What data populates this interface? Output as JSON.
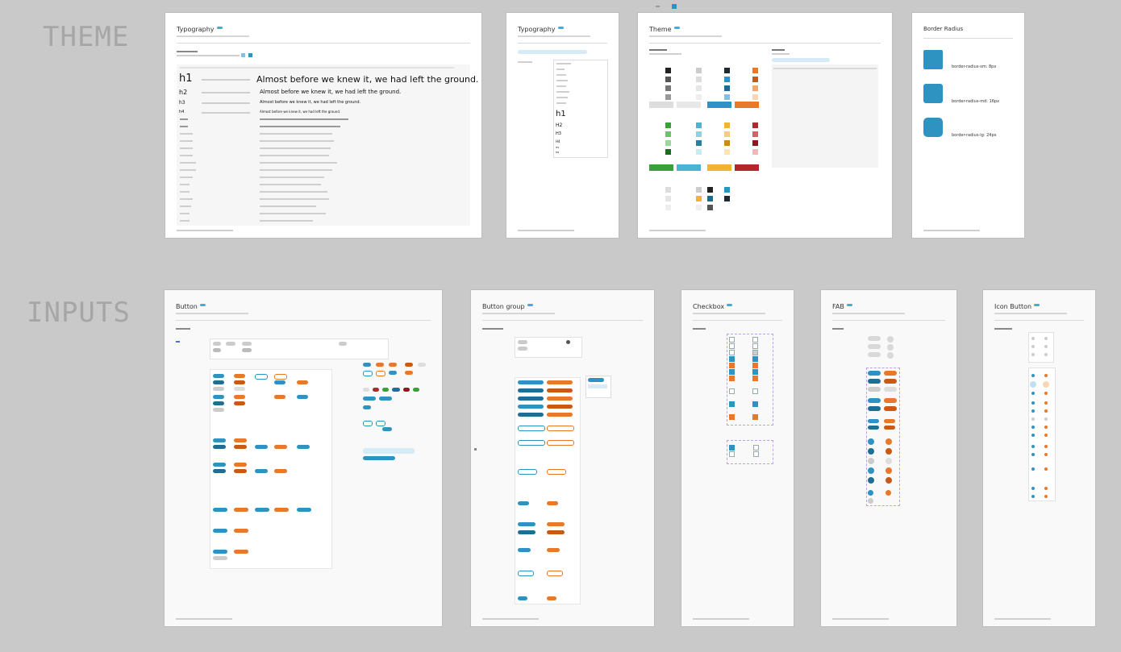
{
  "sections": {
    "theme": "THEME",
    "inputs": "INPUTS"
  },
  "frames": {
    "typography_main": {
      "title": "Typography"
    },
    "typography_side": {
      "title": "Typography"
    },
    "theme": {
      "title": "Theme"
    },
    "border_radius": {
      "title": "Border Radius"
    },
    "button": {
      "title": "Button"
    },
    "button_group": {
      "title": "Button group"
    },
    "checkbox": {
      "title": "Checkbox"
    },
    "fab": {
      "title": "FAB"
    },
    "icon_button": {
      "title": "Icon Button"
    }
  },
  "typography_samples": {
    "h1": {
      "tag": "h1",
      "text": "Almost before we knew it, we had left the ground."
    },
    "h2": {
      "tag": "h2",
      "text": "Almost before we knew it, we had left the ground."
    },
    "h3": {
      "tag": "h3",
      "text": "Almost before we knew it, we had left the ground."
    },
    "h4": {
      "tag": "h4",
      "text": "Almost before we knew it, we had left the ground."
    }
  },
  "typography_side_list": [
    "h1",
    "H2",
    "H3",
    "H4",
    "H5",
    "H6"
  ],
  "border_radius_items": [
    {
      "label": "border-radius-sm: 8px"
    },
    {
      "label": "border-radius-md: 16px"
    },
    {
      "label": "border-radius-lg: 24px"
    }
  ],
  "colors": {
    "background": "#c9c9c9",
    "primary": "#2f93c2",
    "secondary": "#e8782a",
    "dark": "#222222",
    "badge": "#46a9d6"
  }
}
